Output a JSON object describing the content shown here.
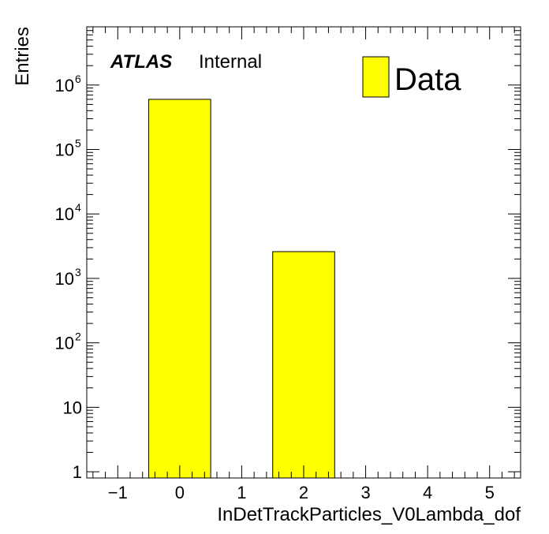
{
  "chart_data": {
    "type": "bar",
    "xlabel": "InDetTrackParticles_V0Lambda_dof",
    "ylabel": "Entries",
    "xlim": [
      -1.5,
      5.5
    ],
    "ylim": [
      0.8,
      8000000
    ],
    "yscale": "log",
    "x_ticks": [
      -1,
      0,
      1,
      2,
      3,
      4,
      5
    ],
    "x_tick_labels": [
      "−1",
      "0",
      "1",
      "2",
      "3",
      "4",
      "5"
    ],
    "y_tick_labels": [
      {
        "value": 1,
        "base": "1",
        "exp": ""
      },
      {
        "value": 10,
        "base": "10",
        "exp": ""
      },
      {
        "value": 100,
        "base": "10",
        "exp": "2"
      },
      {
        "value": 1000,
        "base": "10",
        "exp": "3"
      },
      {
        "value": 10000,
        "base": "10",
        "exp": "4"
      },
      {
        "value": 100000,
        "base": "10",
        "exp": "5"
      },
      {
        "value": 1000000,
        "base": "10",
        "exp": "6"
      }
    ],
    "bins": [
      {
        "x_low": -0.5,
        "x_high": 0.5,
        "value": 600000
      },
      {
        "x_low": 1.5,
        "x_high": 2.5,
        "value": 2600
      }
    ],
    "series": [
      {
        "name": "Data",
        "color": "#ffff00"
      }
    ],
    "atlas_label": "ATLAS",
    "atlas_sublabel": "Internal",
    "legend_placement": "top-right",
    "grid": false
  }
}
